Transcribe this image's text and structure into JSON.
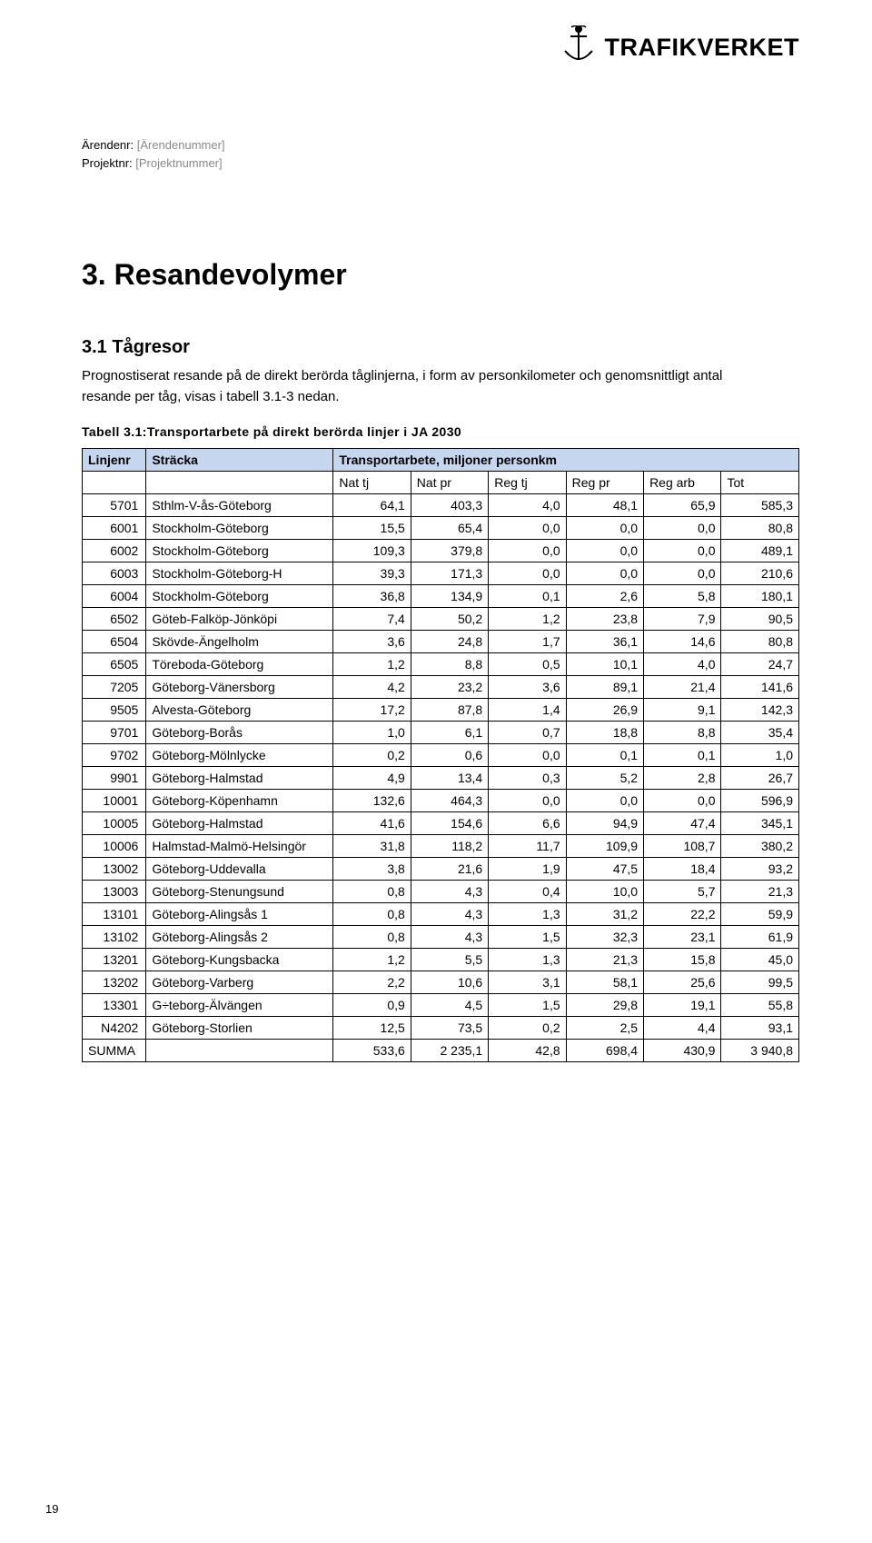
{
  "logo": {
    "text": "TRAFIKVERKET",
    "icon_name": "crown-anchor-icon"
  },
  "meta": {
    "arendenr_label": "Ärendenr:",
    "arendenr_value": "[Ärendenummer]",
    "projektnr_label": "Projektnr:",
    "projektnr_value": "[Projektnummer]"
  },
  "section_title": "3. Resandevolymer",
  "subsection_title": "3.1 Tågresor",
  "body": "Prognostiserat resande på de direkt berörda tåglinjerna, i form av personkilometer och genomsnittligt antal resande per tåg, visas i tabell 3.1-3 nedan.",
  "table_caption": "Tabell 3.1:Transportarbete på direkt berörda linjer i JA 2030",
  "colors": {
    "header_bg": "#c7d6ef",
    "border": "#000000",
    "background": "#ffffff",
    "text": "#000000",
    "placeholder": "#888888"
  },
  "table": {
    "group_header": "Transportarbete, miljoner personkm",
    "columns_top": [
      "Linjenr",
      "Sträcka"
    ],
    "columns_sub": [
      "Nat tj",
      "Nat pr",
      "Reg tj",
      "Reg pr",
      "Reg arb",
      "Tot"
    ],
    "rows": [
      [
        "5701",
        "Sthlm-V-ås-Göteborg",
        "64,1",
        "403,3",
        "4,0",
        "48,1",
        "65,9",
        "585,3"
      ],
      [
        "6001",
        "Stockholm-Göteborg",
        "15,5",
        "65,4",
        "0,0",
        "0,0",
        "0,0",
        "80,8"
      ],
      [
        "6002",
        "Stockholm-Göteborg",
        "109,3",
        "379,8",
        "0,0",
        "0,0",
        "0,0",
        "489,1"
      ],
      [
        "6003",
        "Stockholm-Göteborg-H",
        "39,3",
        "171,3",
        "0,0",
        "0,0",
        "0,0",
        "210,6"
      ],
      [
        "6004",
        "Stockholm-Göteborg",
        "36,8",
        "134,9",
        "0,1",
        "2,6",
        "5,8",
        "180,1"
      ],
      [
        "6502",
        "Göteb-Falköp-Jönköpi",
        "7,4",
        "50,2",
        "1,2",
        "23,8",
        "7,9",
        "90,5"
      ],
      [
        "6504",
        "Skövde-Ängelholm",
        "3,6",
        "24,8",
        "1,7",
        "36,1",
        "14,6",
        "80,8"
      ],
      [
        "6505",
        "Töreboda-Göteborg",
        "1,2",
        "8,8",
        "0,5",
        "10,1",
        "4,0",
        "24,7"
      ],
      [
        "7205",
        "Göteborg-Vänersborg",
        "4,2",
        "23,2",
        "3,6",
        "89,1",
        "21,4",
        "141,6"
      ],
      [
        "9505",
        "Alvesta-Göteborg",
        "17,2",
        "87,8",
        "1,4",
        "26,9",
        "9,1",
        "142,3"
      ],
      [
        "9701",
        "Göteborg-Borås",
        "1,0",
        "6,1",
        "0,7",
        "18,8",
        "8,8",
        "35,4"
      ],
      [
        "9702",
        "Göteborg-Mölnlycke",
        "0,2",
        "0,6",
        "0,0",
        "0,1",
        "0,1",
        "1,0"
      ],
      [
        "9901",
        "Göteborg-Halmstad",
        "4,9",
        "13,4",
        "0,3",
        "5,2",
        "2,8",
        "26,7"
      ],
      [
        "10001",
        "Göteborg-Köpenhamn",
        "132,6",
        "464,3",
        "0,0",
        "0,0",
        "0,0",
        "596,9"
      ],
      [
        "10005",
        "Göteborg-Halmstad",
        "41,6",
        "154,6",
        "6,6",
        "94,9",
        "47,4",
        "345,1"
      ],
      [
        "10006",
        "Halmstad-Malmö-Helsingör",
        "31,8",
        "118,2",
        "11,7",
        "109,9",
        "108,7",
        "380,2"
      ],
      [
        "13002",
        "Göteborg-Uddevalla",
        "3,8",
        "21,6",
        "1,9",
        "47,5",
        "18,4",
        "93,2"
      ],
      [
        "13003",
        "Göteborg-Stenungsund",
        "0,8",
        "4,3",
        "0,4",
        "10,0",
        "5,7",
        "21,3"
      ],
      [
        "13101",
        "Göteborg-Alingsås 1",
        "0,8",
        "4,3",
        "1,3",
        "31,2",
        "22,2",
        "59,9"
      ],
      [
        "13102",
        "Göteborg-Alingsås 2",
        "0,8",
        "4,3",
        "1,5",
        "32,3",
        "23,1",
        "61,9"
      ],
      [
        "13201",
        "Göteborg-Kungsbacka",
        "1,2",
        "5,5",
        "1,3",
        "21,3",
        "15,8",
        "45,0"
      ],
      [
        "13202",
        "Göteborg-Varberg",
        "2,2",
        "10,6",
        "3,1",
        "58,1",
        "25,6",
        "99,5"
      ],
      [
        "13301",
        "G÷teborg-Älvängen",
        "0,9",
        "4,5",
        "1,5",
        "29,8",
        "19,1",
        "55,8"
      ],
      [
        "N4202",
        "Göteborg-Storlien",
        "12,5",
        "73,5",
        "0,2",
        "2,5",
        "4,4",
        "93,1"
      ],
      [
        "SUMMA",
        "",
        "533,6",
        "2 235,1",
        "42,8",
        "698,4",
        "430,9",
        "3 940,8"
      ]
    ]
  },
  "page_number": "19"
}
